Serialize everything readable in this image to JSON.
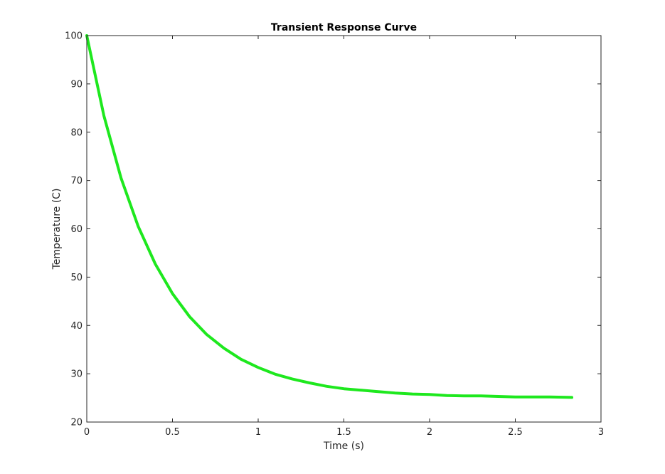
{
  "chart_data": {
    "type": "line",
    "title": "Transient Response Curve",
    "xlabel": "Time (s)",
    "ylabel": "Temperature (C)",
    "xlim": [
      0,
      3
    ],
    "ylim": [
      20,
      100
    ],
    "xticks": [
      0,
      0.5,
      1,
      1.5,
      2,
      2.5,
      3
    ],
    "xtick_labels": [
      "0",
      "0.5",
      "1",
      "1.5",
      "2",
      "2.5",
      "3"
    ],
    "yticks": [
      20,
      30,
      40,
      50,
      60,
      70,
      80,
      90,
      100
    ],
    "ytick_labels": [
      "20",
      "30",
      "40",
      "50",
      "60",
      "70",
      "80",
      "90",
      "100"
    ],
    "grid": false,
    "box": true,
    "series": [
      {
        "color": "#1ee81e",
        "x": [
          0,
          0.1,
          0.2,
          0.3,
          0.4,
          0.5,
          0.6,
          0.7,
          0.8,
          0.9,
          1.0,
          1.1,
          1.2,
          1.3,
          1.4,
          1.5,
          1.6,
          1.7,
          1.8,
          1.9,
          2.0,
          2.1,
          2.2,
          2.3,
          2.4,
          2.5,
          2.6,
          2.7,
          2.83
        ],
        "y": [
          100,
          83.4,
          70.5,
          60.5,
          52.7,
          46.6,
          41.8,
          38.1,
          35.3,
          33.0,
          31.3,
          29.9,
          28.9,
          28.1,
          27.4,
          26.9,
          26.6,
          26.3,
          26.0,
          25.8,
          25.7,
          25.5,
          25.4,
          25.4,
          25.3,
          25.2,
          25.2,
          25.2,
          25.1
        ]
      }
    ]
  }
}
